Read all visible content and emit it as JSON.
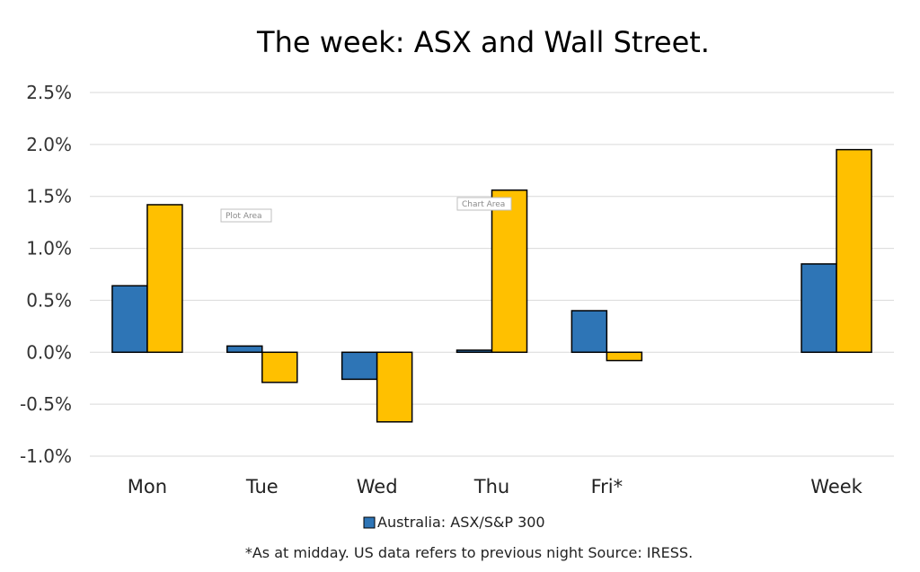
{
  "chart_data": {
    "type": "bar",
    "title": "The week:  ASX and Wall Street.",
    "categories": [
      "Mon",
      "Tue",
      "Wed",
      "Thu",
      "Fri*",
      "",
      "Week"
    ],
    "series": [
      {
        "name": "Australia: ASX/S&P 300",
        "color": "#2e75b6",
        "values": [
          0.64,
          0.06,
          -0.26,
          0.02,
          0.4,
          null,
          0.85
        ]
      },
      {
        "color": "#ffc000",
        "values": [
          1.42,
          -0.29,
          -0.67,
          1.56,
          -0.08,
          null,
          1.95
        ]
      }
    ],
    "yticks": [
      "2.5%",
      "2.0%",
      "1.5%",
      "1.0%",
      "0.5%",
      "0.0%",
      "-0.5%",
      "-1.0%"
    ],
    "ylim": [
      -1.0,
      2.5
    ],
    "grid": true,
    "legend_position": "bottom",
    "footnote": "*As at midday. US data refers to previous night  Source:  IRESS."
  },
  "overlay_labels": {
    "plot_area": "Plot Area",
    "chart_area": "Chart Area"
  }
}
